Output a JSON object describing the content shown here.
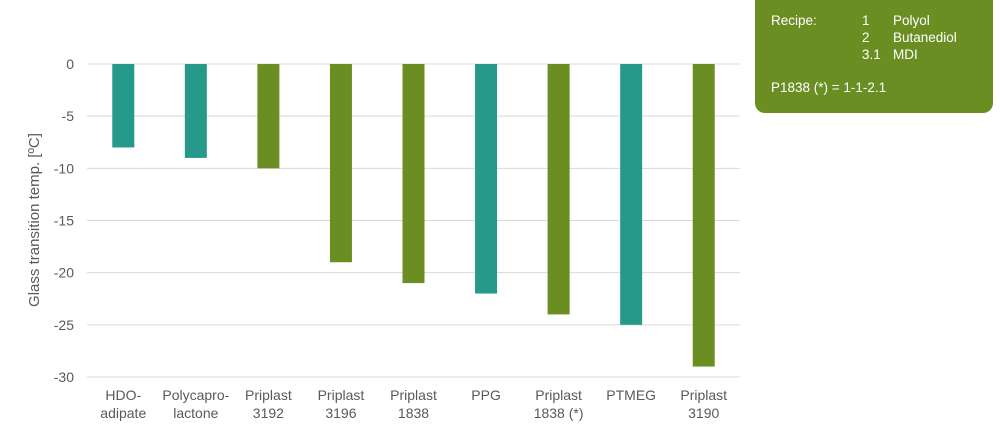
{
  "chart_data": {
    "type": "bar",
    "title": "",
    "xlabel": "",
    "ylabel": "Glass transition temp. [ºC]",
    "ylim": [
      -30,
      0
    ],
    "yticks": [
      0,
      -5,
      -10,
      -15,
      -20,
      -25,
      -30
    ],
    "grid": true,
    "categories": [
      [
        "HDO-",
        "adipate"
      ],
      [
        "Polycapro-",
        "lactone"
      ],
      [
        "Priplast",
        "3192"
      ],
      [
        "Priplast",
        "3196"
      ],
      [
        "Priplast",
        "1838"
      ],
      [
        "PPG"
      ],
      [
        "Priplast",
        "1838 (*)"
      ],
      [
        "PTMEG"
      ],
      [
        "Priplast",
        "3190"
      ]
    ],
    "values": [
      -8,
      -9,
      -10,
      -19,
      -21,
      -22,
      -24,
      -25,
      -29
    ],
    "bar_colors": [
      "#26998a",
      "#26998a",
      "#6b8e23",
      "#6b8e23",
      "#6b8e23",
      "#26998a",
      "#6b8e23",
      "#26998a",
      "#6b8e23"
    ]
  },
  "recipe": {
    "heading": "Recipe:",
    "items": [
      {
        "qty": "1",
        "name": "Polyol"
      },
      {
        "qty": "2",
        "name": "Butanediol"
      },
      {
        "qty": "3.1",
        "name": "MDI"
      }
    ],
    "formula": "P1838 (*) = 1-1-2.1",
    "box_color": "#6b8e23"
  }
}
